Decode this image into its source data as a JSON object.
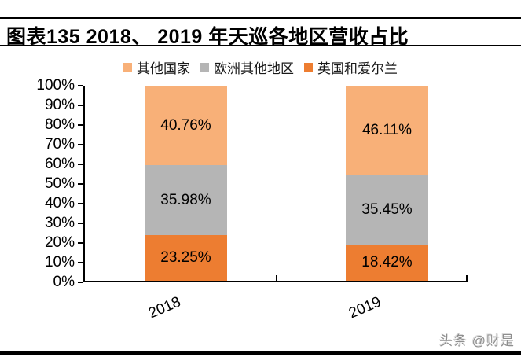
{
  "header": {
    "title": "图表135  2018、 2019 年天巡各地区营收占比"
  },
  "legend": {
    "items": [
      {
        "label": "其他国家"
      },
      {
        "label": "欧洲其他地区"
      },
      {
        "label": "英国和爱尔兰"
      }
    ]
  },
  "chart_data": {
    "type": "bar",
    "stacked": true,
    "title": "图表135 2018、2019 年天巡各地区营收占比",
    "categories": [
      "2018",
      "2019"
    ],
    "series": [
      {
        "name": "英国和爱尔兰",
        "color": "#ED7D31",
        "values": [
          23.25,
          18.42
        ]
      },
      {
        "name": "欧洲其他地区",
        "color": "#B5B5B5",
        "values": [
          35.98,
          35.45
        ]
      },
      {
        "name": "其他国家",
        "color": "#F8B078",
        "values": [
          40.76,
          46.11
        ]
      }
    ],
    "value_labels": [
      [
        "23.25%",
        "35.98%",
        "40.76%"
      ],
      [
        "18.42%",
        "35.45%",
        "46.11%"
      ]
    ],
    "ylim": [
      0,
      100
    ],
    "yticks": [
      "100%",
      "90%",
      "80%",
      "70%",
      "60%",
      "50%",
      "40%",
      "30%",
      "20%",
      "10%",
      "0%"
    ],
    "grid": false,
    "legend_position": "top"
  },
  "watermark": {
    "text": "头条 @财是"
  }
}
